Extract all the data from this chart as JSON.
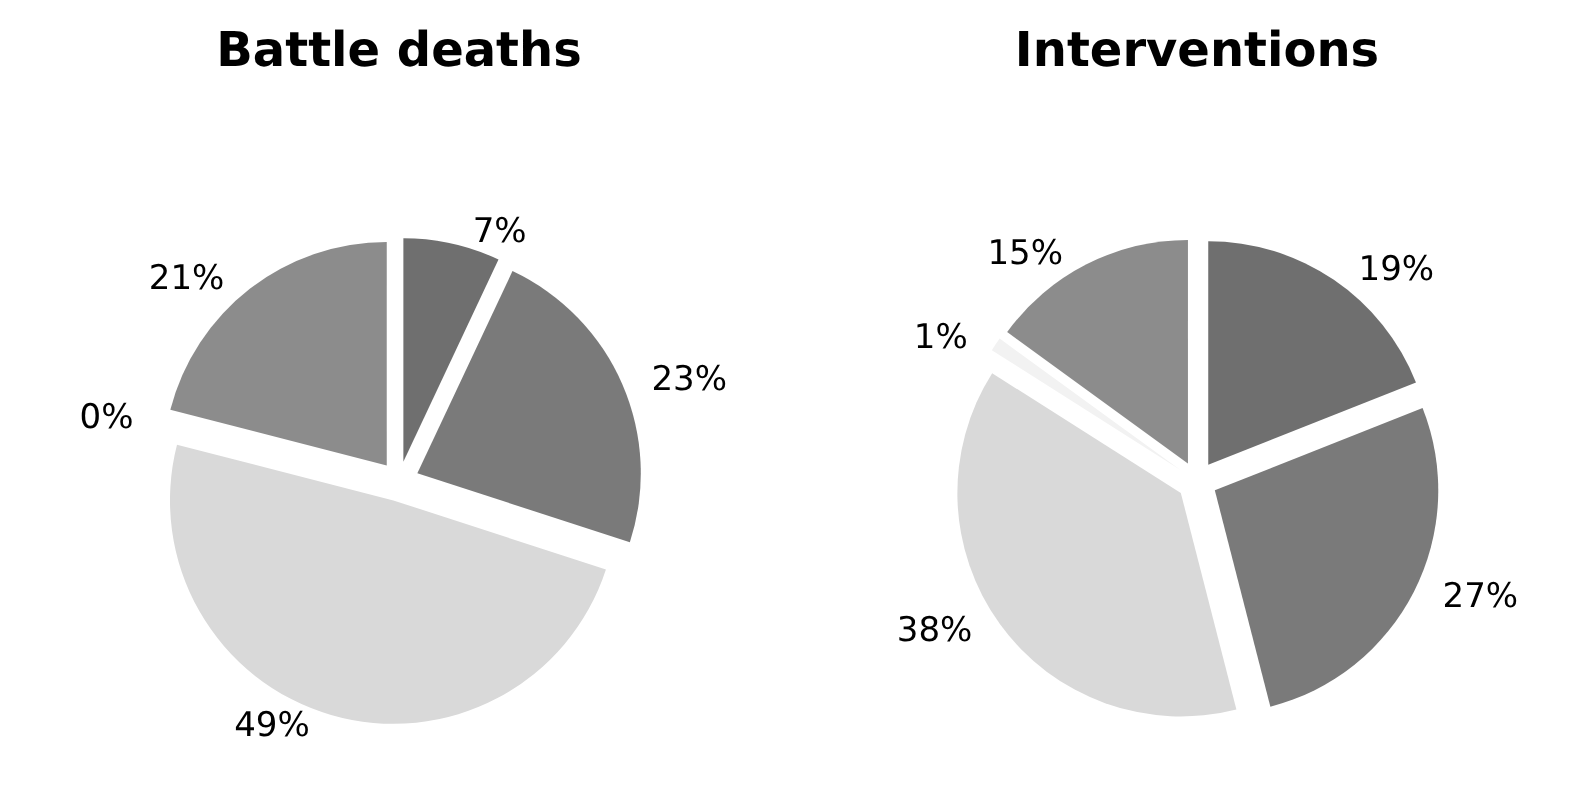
{
  "chart_data": [
    {
      "type": "pie",
      "title": "Battle deaths",
      "categories": [
        null,
        null,
        null,
        null,
        null
      ],
      "values": [
        7,
        23,
        49,
        0,
        21
      ],
      "value_labels": [
        "7%",
        "23%",
        "49%",
        "0%",
        "21%"
      ],
      "colors": [
        "#6f6f6f",
        "#7a7a7a",
        "#d9d9d9",
        "#f2f2f2",
        "#8c8c8c"
      ]
    },
    {
      "type": "pie",
      "title": "Interventions",
      "categories": [
        null,
        null,
        null,
        null,
        null
      ],
      "values": [
        19,
        27,
        38,
        1,
        15
      ],
      "value_labels": [
        "19%",
        "27%",
        "38%",
        "1%",
        "15%"
      ],
      "colors": [
        "#6f6f6f",
        "#7a7a7a",
        "#d9d9d9",
        "#f2f2f2",
        "#8c8c8c"
      ]
    }
  ]
}
